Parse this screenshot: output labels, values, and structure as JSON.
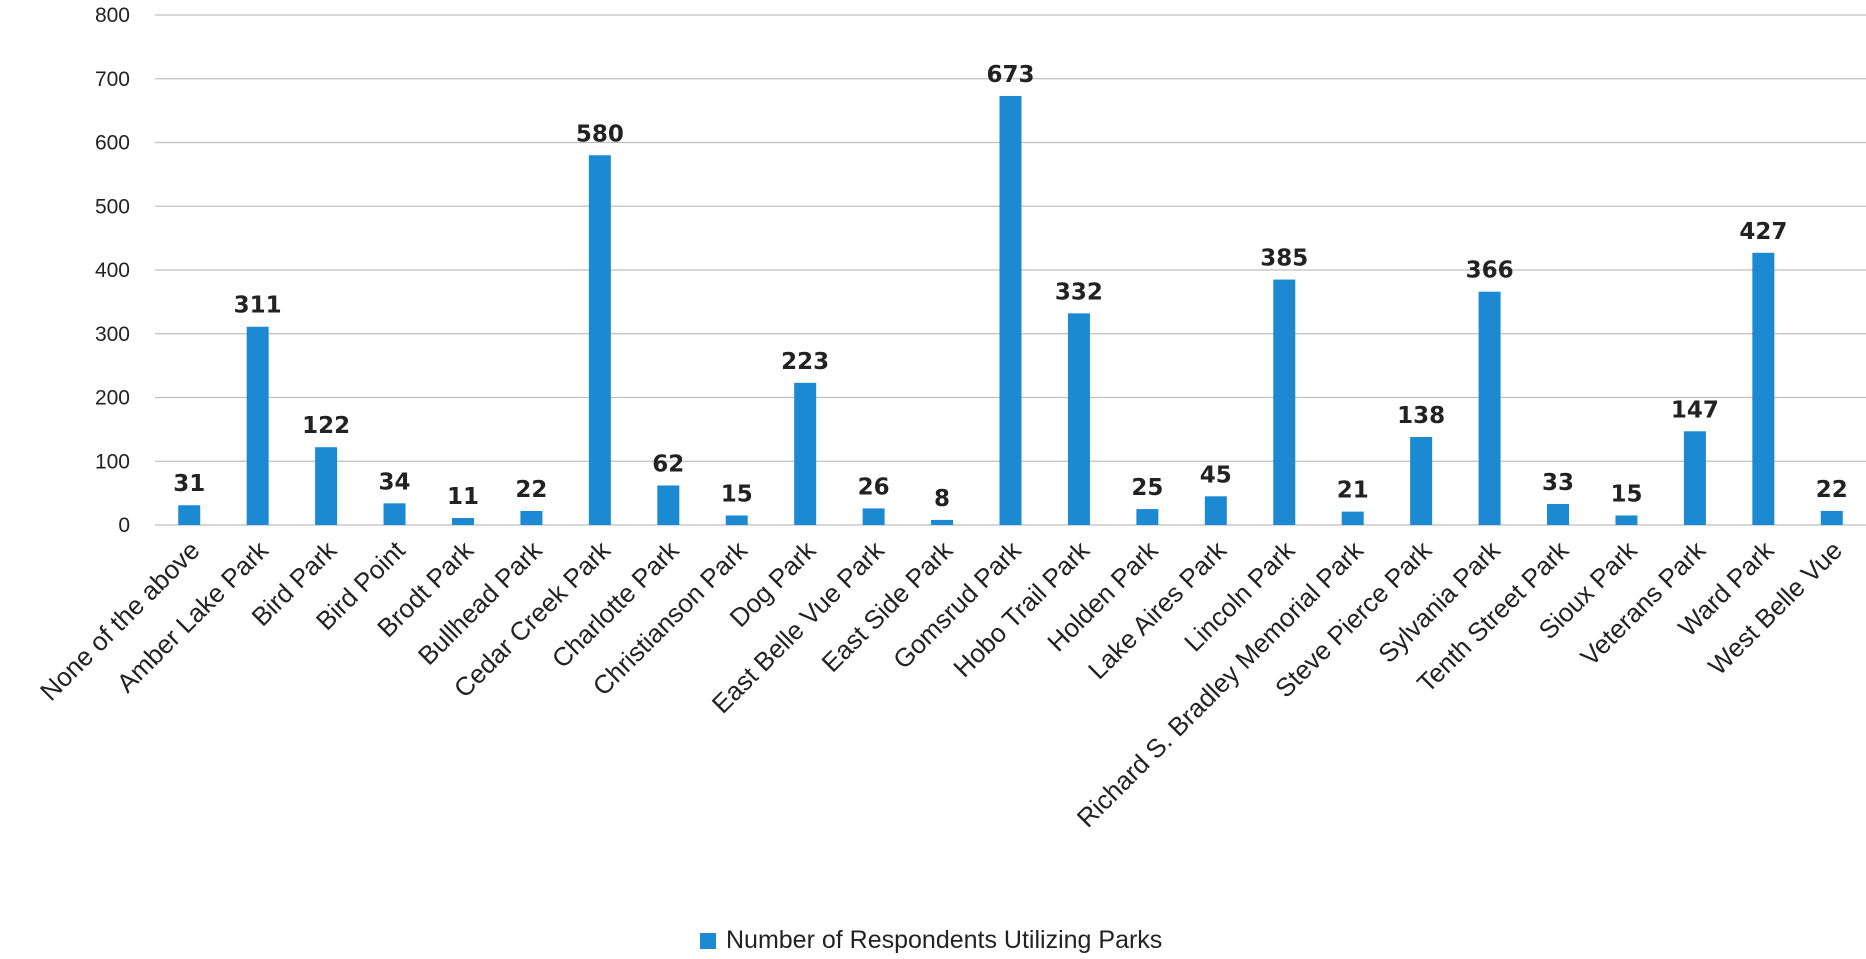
{
  "chart_data": {
    "type": "bar",
    "categories": [
      "None of the above",
      "Amber Lake Park",
      "Bird Park",
      "Bird Point",
      "Brodt Park",
      "Bullhead Park",
      "Cedar Creek Park",
      "Charlotte Park",
      "Christianson Park",
      "Dog Park",
      "East Belle Vue Park",
      "East Side Park",
      "Gomsrud Park",
      "Hobo Trail Park",
      "Holden Park",
      "Lake Aires Park",
      "Lincoln Park",
      "Richard S. Bradley Memorial Park",
      "Steve Pierce Park",
      "Sylvania Park",
      "Tenth Street Park",
      "Sioux Park",
      "Veterans Park",
      "Ward Park",
      "West Belle Vue"
    ],
    "series": [
      {
        "name": "Number of Respondents Utilizing Parks",
        "values": [
          31,
          311,
          122,
          34,
          11,
          22,
          580,
          62,
          15,
          223,
          26,
          8,
          673,
          332,
          25,
          45,
          385,
          21,
          138,
          366,
          33,
          15,
          147,
          427,
          22
        ]
      }
    ],
    "ylim": [
      0,
      800
    ],
    "yticks": [
      0,
      100,
      200,
      300,
      400,
      500,
      600,
      700,
      800
    ],
    "grid": true,
    "legend_position": "bottom",
    "bar_color": "#1b8ad3",
    "grid_color": "#bfbfbf"
  }
}
